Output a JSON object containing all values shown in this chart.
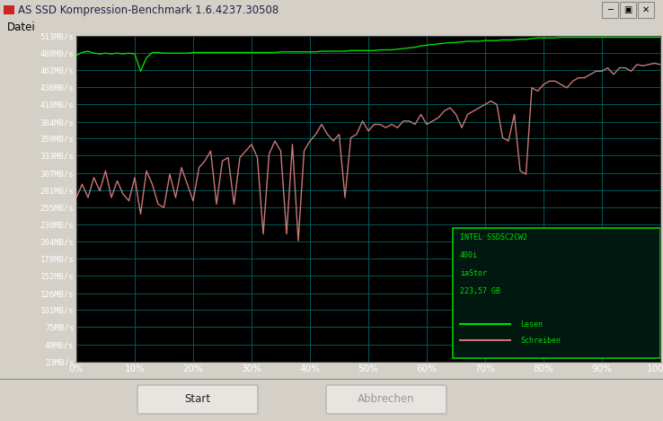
{
  "title": "AS SSD Kompression-Benchmark 1.6.4237.30508",
  "menu_label": "Datei",
  "plot_bg": "#000000",
  "outer_bg": "#d4d0c8",
  "titlebar_bg": "#b8cce4",
  "grid_color": "#006666",
  "read_color": "#00dd00",
  "write_color": "#cc7777",
  "ytick_labels": [
    "513MB/s",
    "488MB/s",
    "462MB/s",
    "436MB/s",
    "410MB/s",
    "384MB/s",
    "359MB/s",
    "333MB/s",
    "307MB/s",
    "281MB/s",
    "255MB/s",
    "230MB/s",
    "204MB/s",
    "178MB/s",
    "152MB/s",
    "126MB/s",
    "101MB/s",
    "75MB/s",
    "49MB/s",
    "23MB/s"
  ],
  "ytick_values": [
    513,
    488,
    462,
    436,
    410,
    384,
    359,
    333,
    307,
    281,
    255,
    230,
    204,
    178,
    152,
    126,
    101,
    75,
    49,
    23
  ],
  "xtick_labels": [
    "0%",
    "10%",
    "20%",
    "30%",
    "40%",
    "50%",
    "60%",
    "70%",
    "80%",
    "90%",
    "100%"
  ],
  "xtick_values": [
    0,
    10,
    20,
    30,
    40,
    50,
    60,
    70,
    80,
    90,
    100
  ],
  "legend_info": [
    "INTEL SSDSC2CW2",
    "400i",
    "iaStor",
    "223,57 GB"
  ],
  "legend_lesen": "Lesen",
  "legend_schreiben": "Schreiben",
  "ymin": 23,
  "ymax": 513,
  "xmin": 0,
  "xmax": 100,
  "read_x": [
    0,
    1,
    2,
    3,
    4,
    5,
    6,
    7,
    8,
    9,
    10,
    11,
    12,
    13,
    14,
    15,
    16,
    17,
    18,
    19,
    20,
    21,
    22,
    23,
    24,
    25,
    26,
    27,
    28,
    29,
    30,
    31,
    32,
    33,
    34,
    35,
    36,
    37,
    38,
    39,
    40,
    41,
    42,
    43,
    44,
    45,
    46,
    47,
    48,
    49,
    50,
    51,
    52,
    53,
    54,
    55,
    56,
    57,
    58,
    59,
    60,
    61,
    62,
    63,
    64,
    65,
    66,
    67,
    68,
    69,
    70,
    71,
    72,
    73,
    74,
    75,
    76,
    77,
    78,
    79,
    80,
    81,
    82,
    83,
    84,
    85,
    86,
    87,
    88,
    89,
    90,
    91,
    92,
    93,
    94,
    95,
    96,
    97,
    98,
    99,
    100
  ],
  "read_y": [
    484,
    488,
    490,
    487,
    486,
    487,
    486,
    487,
    486,
    487,
    486,
    460,
    480,
    488,
    488,
    487,
    487,
    487,
    487,
    487,
    488,
    488,
    488,
    488,
    488,
    488,
    488,
    488,
    488,
    488,
    488,
    488,
    488,
    488,
    488,
    489,
    489,
    489,
    489,
    489,
    489,
    489,
    490,
    490,
    490,
    490,
    490,
    491,
    491,
    491,
    491,
    491,
    492,
    492,
    492,
    493,
    494,
    495,
    496,
    498,
    499,
    500,
    501,
    502,
    503,
    503,
    504,
    505,
    505,
    505,
    506,
    506,
    506,
    507,
    507,
    507,
    508,
    508,
    509,
    510,
    510,
    510,
    510,
    511,
    511,
    511,
    511,
    511,
    511,
    511,
    511,
    511,
    511,
    511,
    511,
    511,
    511,
    511,
    511,
    511,
    511
  ],
  "write_x": [
    0,
    1,
    2,
    3,
    4,
    5,
    6,
    7,
    8,
    9,
    10,
    11,
    12,
    13,
    14,
    15,
    16,
    17,
    18,
    19,
    20,
    21,
    22,
    23,
    24,
    25,
    26,
    27,
    28,
    29,
    30,
    31,
    32,
    33,
    34,
    35,
    36,
    37,
    38,
    39,
    40,
    41,
    42,
    43,
    44,
    45,
    46,
    47,
    48,
    49,
    50,
    51,
    52,
    53,
    54,
    55,
    56,
    57,
    58,
    59,
    60,
    61,
    62,
    63,
    64,
    65,
    66,
    67,
    68,
    69,
    70,
    71,
    72,
    73,
    74,
    75,
    76,
    77,
    78,
    79,
    80,
    81,
    82,
    83,
    84,
    85,
    86,
    87,
    88,
    89,
    90,
    91,
    92,
    93,
    94,
    95,
    96,
    97,
    98,
    99,
    100
  ],
  "write_y": [
    270,
    290,
    270,
    300,
    280,
    310,
    270,
    295,
    275,
    265,
    300,
    245,
    310,
    290,
    260,
    255,
    305,
    270,
    315,
    290,
    265,
    315,
    325,
    340,
    260,
    325,
    330,
    260,
    330,
    340,
    350,
    330,
    215,
    335,
    355,
    340,
    215,
    350,
    205,
    340,
    355,
    365,
    380,
    365,
    355,
    365,
    270,
    360,
    365,
    385,
    370,
    380,
    380,
    375,
    380,
    375,
    385,
    385,
    380,
    395,
    380,
    385,
    390,
    400,
    405,
    395,
    375,
    395,
    400,
    405,
    410,
    415,
    410,
    360,
    355,
    395,
    310,
    305,
    435,
    430,
    440,
    445,
    445,
    440,
    435,
    445,
    450,
    450,
    455,
    460,
    460,
    465,
    455,
    465,
    465,
    460,
    470,
    468,
    470,
    472,
    470
  ]
}
